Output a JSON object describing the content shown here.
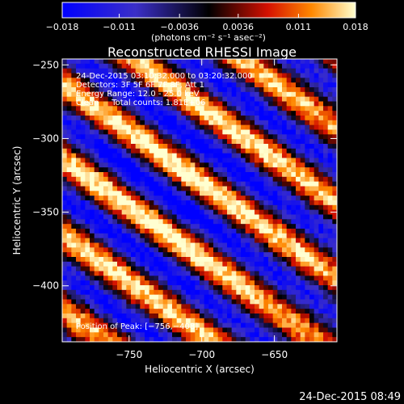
{
  "chart_data": {
    "type": "heatmap",
    "title": "Reconstructed RHESSI Image",
    "xlabel": "Heliocentric X (arcsec)",
    "ylabel": "Heliocentric Y (arcsec)",
    "xlim": [
      -796,
      -607
    ],
    "ylim": [
      -438,
      -246
    ],
    "xticks": [
      -750,
      -700,
      -650
    ],
    "xtick_labels": [
      "−750",
      "−700",
      "−650"
    ],
    "yticks": [
      -250,
      -300,
      -350,
      -400
    ],
    "ytick_labels": [
      "−250",
      "−300",
      "−350",
      "−400"
    ],
    "colorbar": {
      "range": [
        -0.018,
        0.018
      ],
      "ticks": [
        -0.018,
        -0.011,
        -0.0036,
        0.0036,
        0.011,
        0.018
      ],
      "tick_labels": [
        "−0.018",
        "−0.011",
        "−0.0036",
        "0.0036",
        "0.011",
        "0.018"
      ],
      "units": "(photons cm⁻² s⁻¹ asec⁻²)"
    },
    "stripe_angle_deg": -35,
    "stripe_period_arcsec": 42,
    "annotations": [
      "24-Dec-2015 03:10:32.000 to 03:20:32.000",
      "Detectors: 3F 5F 6F 7F 8F, Att 1",
      "Energy Range: 12.0 - 25.0 keV",
      "Clean     Total counts: 1.81E+06"
    ],
    "peak_label": "Position of Peak: [−756,−408]",
    "footer_date": "24-Dec-2015 08:49"
  }
}
